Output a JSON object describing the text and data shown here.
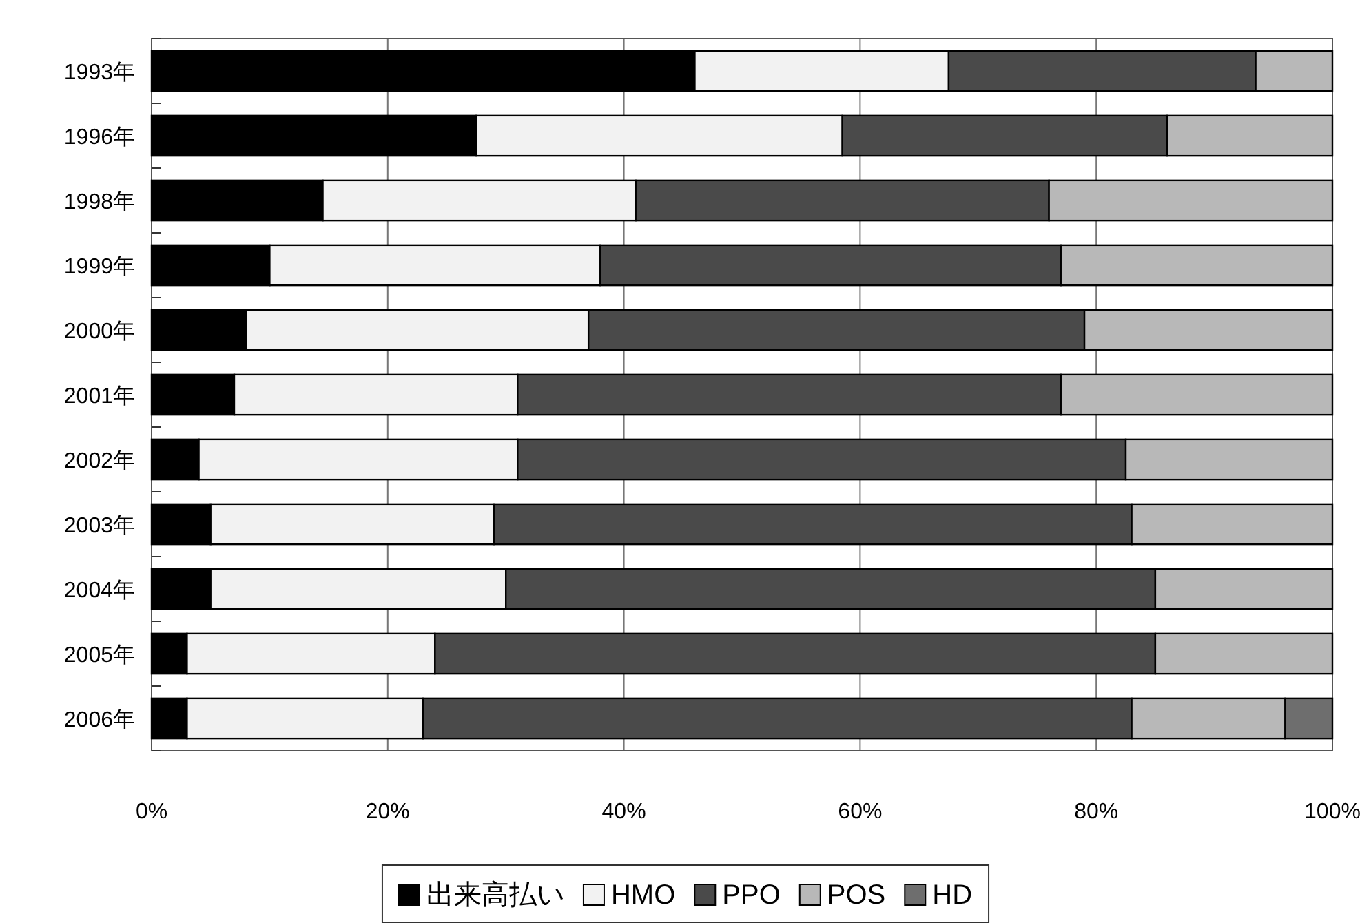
{
  "chart_data": {
    "type": "bar",
    "orientation": "horizontal",
    "stacked": true,
    "categories": [
      "1993年",
      "1996年",
      "1998年",
      "1999年",
      "2000年",
      "2001年",
      "2002年",
      "2003年",
      "2004年",
      "2005年",
      "2006年"
    ],
    "series": [
      {
        "name": "出来高払い",
        "color": "#000000",
        "values": [
          46,
          27.5,
          14.5,
          10,
          8,
          7,
          4,
          5,
          5,
          3,
          3
        ]
      },
      {
        "name": "HMO",
        "color": "#f2f2f2",
        "values": [
          21.5,
          31,
          26.5,
          28,
          29,
          24,
          27,
          24,
          25,
          21,
          20
        ]
      },
      {
        "name": "PPO",
        "color": "#4a4a4a",
        "values": [
          26,
          27.5,
          35,
          39,
          42,
          46,
          51.5,
          54,
          55,
          61,
          60
        ]
      },
      {
        "name": "POS",
        "color": "#b8b8b8",
        "values": [
          6.5,
          14,
          24,
          23,
          21,
          23,
          17.5,
          17,
          15,
          15,
          13
        ]
      },
      {
        "name": "HD",
        "color": "#6e6e6e",
        "values": [
          null,
          null,
          null,
          null,
          null,
          null,
          null,
          null,
          null,
          null,
          4
        ]
      }
    ],
    "xlim": [
      0,
      100
    ],
    "xticks": [
      {
        "value": 0,
        "label": "0%"
      },
      {
        "value": 20,
        "label": "20%"
      },
      {
        "value": 40,
        "label": "40%"
      },
      {
        "value": 60,
        "label": "60%"
      },
      {
        "value": 80,
        "label": "80%"
      },
      {
        "value": 100,
        "label": "100%"
      }
    ],
    "grid": "x",
    "legend": "bottom"
  }
}
